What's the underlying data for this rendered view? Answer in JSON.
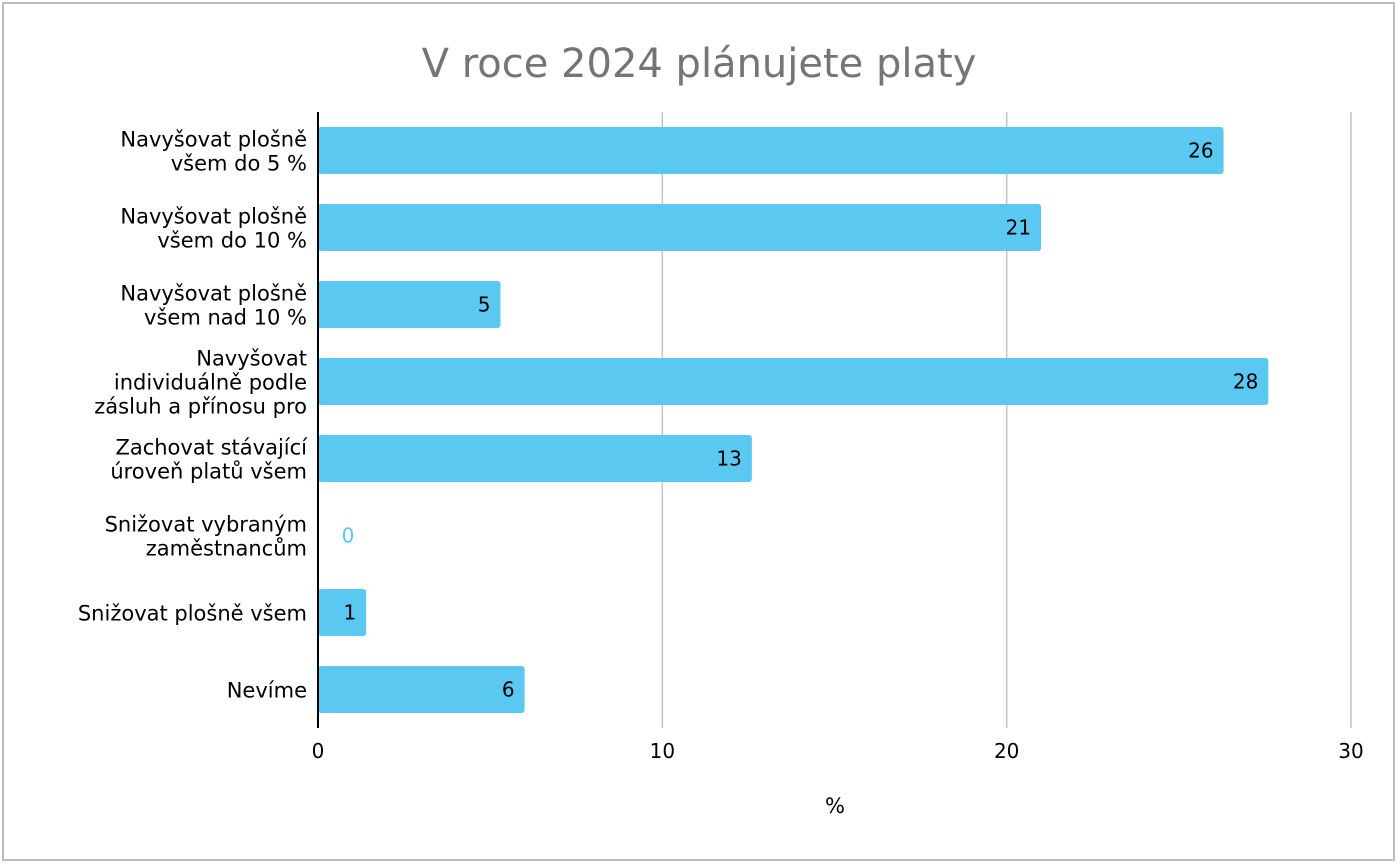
{
  "chart_data": {
    "type": "bar",
    "orientation": "horizontal",
    "title": "V roce 2024 plánujete platy",
    "xlabel": "%",
    "ylabel": "",
    "xlim": [
      0,
      30
    ],
    "x_ticks": [
      "0",
      "10",
      "20",
      "30"
    ],
    "grid": "vertical",
    "legend": "none",
    "bar_color": "#5bc8f2",
    "axis_color": "#000000",
    "grid_color": "#c4c4c4",
    "title_color": "#757575",
    "categories": [
      [
        "Navyšovat plošně",
        "všem do 5 %"
      ],
      [
        "Navyšovat plošně",
        "všem do 10 %"
      ],
      [
        "Navyšovat plošně",
        "všem nad 10 %"
      ],
      [
        "Navyšovat",
        "individuálně podle",
        "zásluh a přínosu pro"
      ],
      [
        "Zachovat stávající",
        "úroveň platů všem"
      ],
      [
        "Snižovat vybraným",
        "zaměstnancům"
      ],
      [
        "Snižovat plošně všem"
      ],
      [
        "Nevíme"
      ]
    ],
    "values": [
      26.3,
      21,
      5.3,
      27.6,
      12.6,
      0,
      1.4,
      6
    ]
  }
}
